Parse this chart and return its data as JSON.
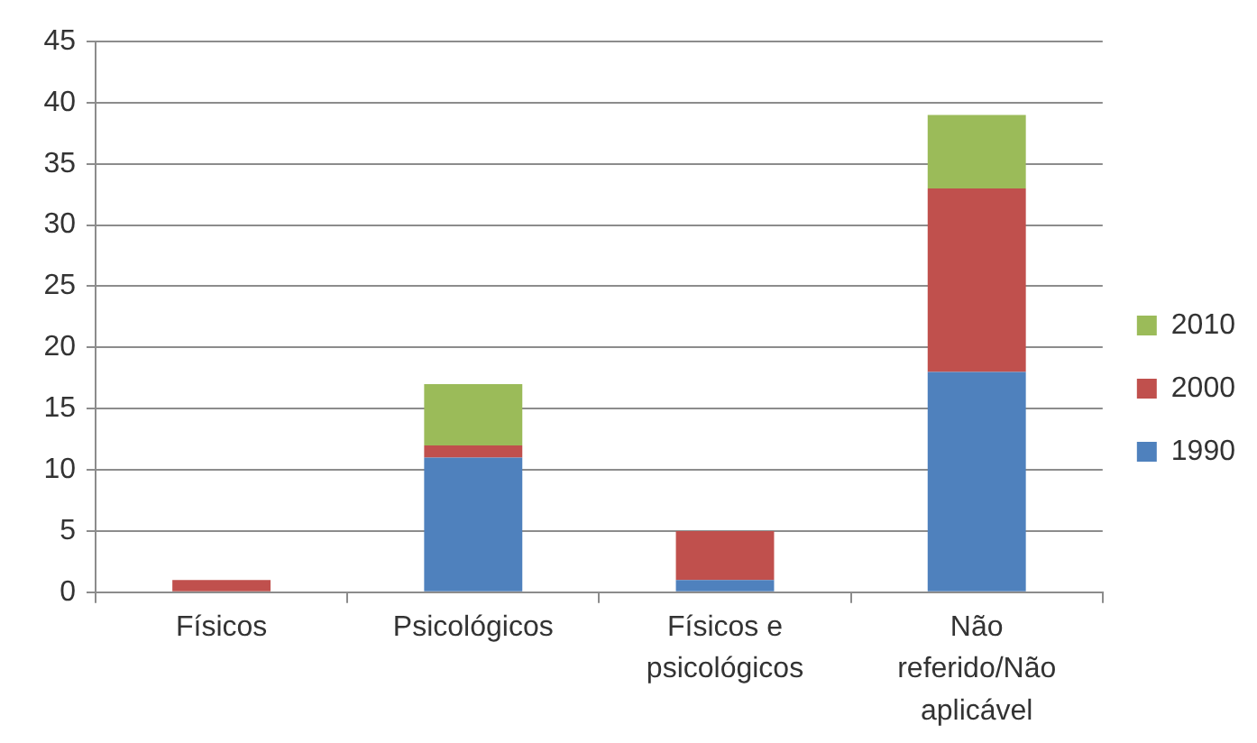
{
  "chart_data": {
    "type": "bar",
    "stacked": true,
    "categories": [
      "Físicos",
      "Psicológicos",
      "Físicos e psicológicos",
      "Não referido/Não aplicável"
    ],
    "series": [
      {
        "name": "1990",
        "color": "#4f81bd",
        "values": [
          0,
          11,
          1,
          18
        ]
      },
      {
        "name": "2000",
        "color": "#c0504d",
        "values": [
          1,
          1,
          4,
          15
        ]
      },
      {
        "name": "2010",
        "color": "#9bbb59",
        "values": [
          0,
          5,
          0,
          6
        ]
      }
    ],
    "ylim": [
      0,
      45
    ],
    "yticks": [
      0,
      5,
      10,
      15,
      20,
      25,
      30,
      35,
      40,
      45
    ],
    "grid": "y",
    "legend": "right"
  }
}
